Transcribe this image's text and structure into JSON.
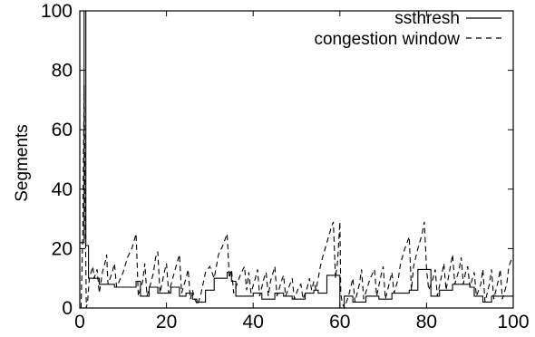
{
  "chart_data": {
    "type": "line",
    "title": "",
    "xlabel": "",
    "ylabel": "Segments",
    "xlim": [
      0,
      100
    ],
    "ylim": [
      0,
      100
    ],
    "xticks": [
      0,
      20,
      40,
      60,
      80,
      100
    ],
    "yticks": [
      0,
      20,
      40,
      60,
      80,
      100
    ],
    "grid": false,
    "legend_position": "top-right",
    "series": [
      {
        "name": "ssthresh",
        "style": "solid",
        "color": "#000000",
        "points": [
          [
            0,
            22
          ],
          [
            1,
            22
          ],
          [
            1,
            100
          ],
          [
            1.4,
            100
          ],
          [
            1.4,
            21
          ],
          [
            2,
            21
          ],
          [
            2,
            10
          ],
          [
            4.5,
            10
          ],
          [
            4.5,
            8
          ],
          [
            8,
            8
          ],
          [
            8,
            7
          ],
          [
            13,
            7
          ],
          [
            13,
            9
          ],
          [
            14,
            9
          ],
          [
            14,
            4
          ],
          [
            16,
            4
          ],
          [
            16,
            7
          ],
          [
            18,
            7
          ],
          [
            18,
            5
          ],
          [
            21,
            5
          ],
          [
            21,
            7
          ],
          [
            23,
            7
          ],
          [
            23,
            4
          ],
          [
            24.5,
            4
          ],
          [
            24.5,
            5
          ],
          [
            26,
            5
          ],
          [
            26,
            3
          ],
          [
            27,
            3
          ],
          [
            27,
            2
          ],
          [
            29,
            2
          ],
          [
            29,
            6
          ],
          [
            31,
            6
          ],
          [
            31,
            10
          ],
          [
            34,
            10
          ],
          [
            34,
            12
          ],
          [
            35,
            12
          ],
          [
            35,
            9
          ],
          [
            36,
            9
          ],
          [
            36,
            4
          ],
          [
            40,
            4
          ],
          [
            40,
            5
          ],
          [
            42,
            5
          ],
          [
            42,
            3
          ],
          [
            45,
            3
          ],
          [
            45,
            5
          ],
          [
            47,
            5
          ],
          [
            47,
            4
          ],
          [
            49,
            4
          ],
          [
            49,
            3
          ],
          [
            52,
            3
          ],
          [
            52,
            5
          ],
          [
            54,
            5
          ],
          [
            54,
            6
          ],
          [
            55,
            6
          ],
          [
            55,
            5
          ],
          [
            57,
            5
          ],
          [
            57,
            11
          ],
          [
            60,
            11
          ],
          [
            60,
            0
          ],
          [
            61,
            0
          ],
          [
            61,
            4
          ],
          [
            63,
            4
          ],
          [
            63,
            2
          ],
          [
            66,
            2
          ],
          [
            66,
            4
          ],
          [
            69,
            4
          ],
          [
            69,
            3
          ],
          [
            72,
            3
          ],
          [
            72,
            5
          ],
          [
            76,
            5
          ],
          [
            76,
            6
          ],
          [
            78,
            6
          ],
          [
            78,
            13
          ],
          [
            81,
            13
          ],
          [
            81,
            4
          ],
          [
            83,
            4
          ],
          [
            83,
            6
          ],
          [
            86,
            6
          ],
          [
            86,
            8
          ],
          [
            90,
            8
          ],
          [
            90,
            7
          ],
          [
            91,
            7
          ],
          [
            91,
            4
          ],
          [
            93,
            4
          ],
          [
            93,
            2
          ],
          [
            95,
            2
          ],
          [
            95,
            4
          ],
          [
            98,
            4
          ],
          [
            98,
            4
          ],
          [
            100,
            4
          ]
        ]
      },
      {
        "name": "congestion window",
        "style": "dashed",
        "color": "#000000",
        "points": [
          [
            0.3,
            0
          ],
          [
            0.7,
            25
          ],
          [
            1,
            75
          ],
          [
            1.2,
            40
          ],
          [
            1.5,
            0
          ],
          [
            1.8,
            2
          ],
          [
            2.2,
            10
          ],
          [
            3,
            14
          ],
          [
            3.3,
            10
          ],
          [
            4,
            13
          ],
          [
            4.5,
            5
          ],
          [
            5.2,
            12
          ],
          [
            5.8,
            15
          ],
          [
            6.2,
            18
          ],
          [
            6.5,
            8
          ],
          [
            7.5,
            12
          ],
          [
            8,
            15
          ],
          [
            8.5,
            7
          ],
          [
            10,
            12
          ],
          [
            11,
            17
          ],
          [
            12,
            20
          ],
          [
            13,
            25
          ],
          [
            13.5,
            4
          ],
          [
            14.5,
            9
          ],
          [
            15,
            15
          ],
          [
            15.5,
            4
          ],
          [
            16.5,
            9
          ],
          [
            17,
            12
          ],
          [
            17.5,
            17
          ],
          [
            18,
            19
          ],
          [
            18.5,
            5
          ],
          [
            19.5,
            12
          ],
          [
            20,
            15
          ],
          [
            20.5,
            5
          ],
          [
            22,
            13
          ],
          [
            23,
            18
          ],
          [
            23.5,
            5
          ],
          [
            24.5,
            10
          ],
          [
            25,
            13
          ],
          [
            25.5,
            3
          ],
          [
            26,
            6
          ],
          [
            26.5,
            3
          ],
          [
            27.2,
            1
          ],
          [
            28,
            5
          ],
          [
            29,
            12
          ],
          [
            30,
            14
          ],
          [
            31,
            10
          ],
          [
            32,
            18
          ],
          [
            33,
            21
          ],
          [
            34,
            25
          ],
          [
            34.5,
            10
          ],
          [
            35,
            13
          ],
          [
            35.5,
            5
          ],
          [
            37,
            11
          ],
          [
            38,
            14
          ],
          [
            38.5,
            6
          ],
          [
            39,
            12
          ],
          [
            39.5,
            5
          ],
          [
            40.5,
            10
          ],
          [
            41,
            13
          ],
          [
            41.5,
            4
          ],
          [
            42.5,
            10
          ],
          [
            43,
            12
          ],
          [
            43.5,
            4
          ],
          [
            44,
            9
          ],
          [
            45,
            14
          ],
          [
            45.5,
            4
          ],
          [
            46.5,
            9
          ],
          [
            47,
            11
          ],
          [
            47.5,
            4
          ],
          [
            48.5,
            8
          ],
          [
            49,
            10
          ],
          [
            49.5,
            3
          ],
          [
            50.5,
            7
          ],
          [
            51,
            8
          ],
          [
            51.5,
            3
          ],
          [
            52.5,
            7
          ],
          [
            53,
            10
          ],
          [
            53.5,
            6
          ],
          [
            54,
            9
          ],
          [
            54.5,
            6
          ],
          [
            55.5,
            14
          ],
          [
            56,
            17
          ],
          [
            57,
            22
          ],
          [
            58,
            27
          ],
          [
            58.5,
            29
          ],
          [
            59,
            10
          ],
          [
            59.5,
            16
          ],
          [
            60,
            29
          ],
          [
            60.2,
            5
          ],
          [
            60.5,
            2
          ],
          [
            61,
            0
          ],
          [
            62,
            4
          ],
          [
            63,
            10
          ],
          [
            63.5,
            2
          ],
          [
            64.5,
            8
          ],
          [
            65,
            13
          ],
          [
            65.5,
            3
          ],
          [
            67,
            10
          ],
          [
            68,
            13
          ],
          [
            68.5,
            4
          ],
          [
            69.5,
            11
          ],
          [
            70,
            14
          ],
          [
            70.5,
            3
          ],
          [
            71.5,
            9
          ],
          [
            72,
            12
          ],
          [
            72.5,
            5
          ],
          [
            73.5,
            10
          ],
          [
            74,
            15
          ],
          [
            75,
            20
          ],
          [
            76,
            24
          ],
          [
            76.5,
            6
          ],
          [
            77,
            14
          ],
          [
            78,
            20
          ],
          [
            79,
            25
          ],
          [
            79.5,
            29
          ],
          [
            80,
            13
          ],
          [
            80.5,
            6
          ],
          [
            81.5,
            10
          ],
          [
            82,
            13
          ],
          [
            82.5,
            4
          ],
          [
            83.5,
            11
          ],
          [
            84,
            15
          ],
          [
            84.5,
            6
          ],
          [
            85.5,
            14
          ],
          [
            86,
            18
          ],
          [
            86.5,
            8
          ],
          [
            87.5,
            13
          ],
          [
            88,
            17
          ],
          [
            88.5,
            8
          ],
          [
            89,
            12
          ],
          [
            89.5,
            14
          ],
          [
            90,
            7
          ],
          [
            91,
            12
          ],
          [
            91.5,
            4
          ],
          [
            92.5,
            8
          ],
          [
            93,
            13
          ],
          [
            93.5,
            2
          ],
          [
            94.5,
            8
          ],
          [
            95,
            13
          ],
          [
            95.5,
            3
          ],
          [
            96.5,
            9
          ],
          [
            97,
            13
          ],
          [
            97.5,
            3
          ],
          [
            98.5,
            8
          ],
          [
            99,
            14
          ],
          [
            99.5,
            16
          ],
          [
            100,
            17
          ]
        ]
      }
    ]
  }
}
